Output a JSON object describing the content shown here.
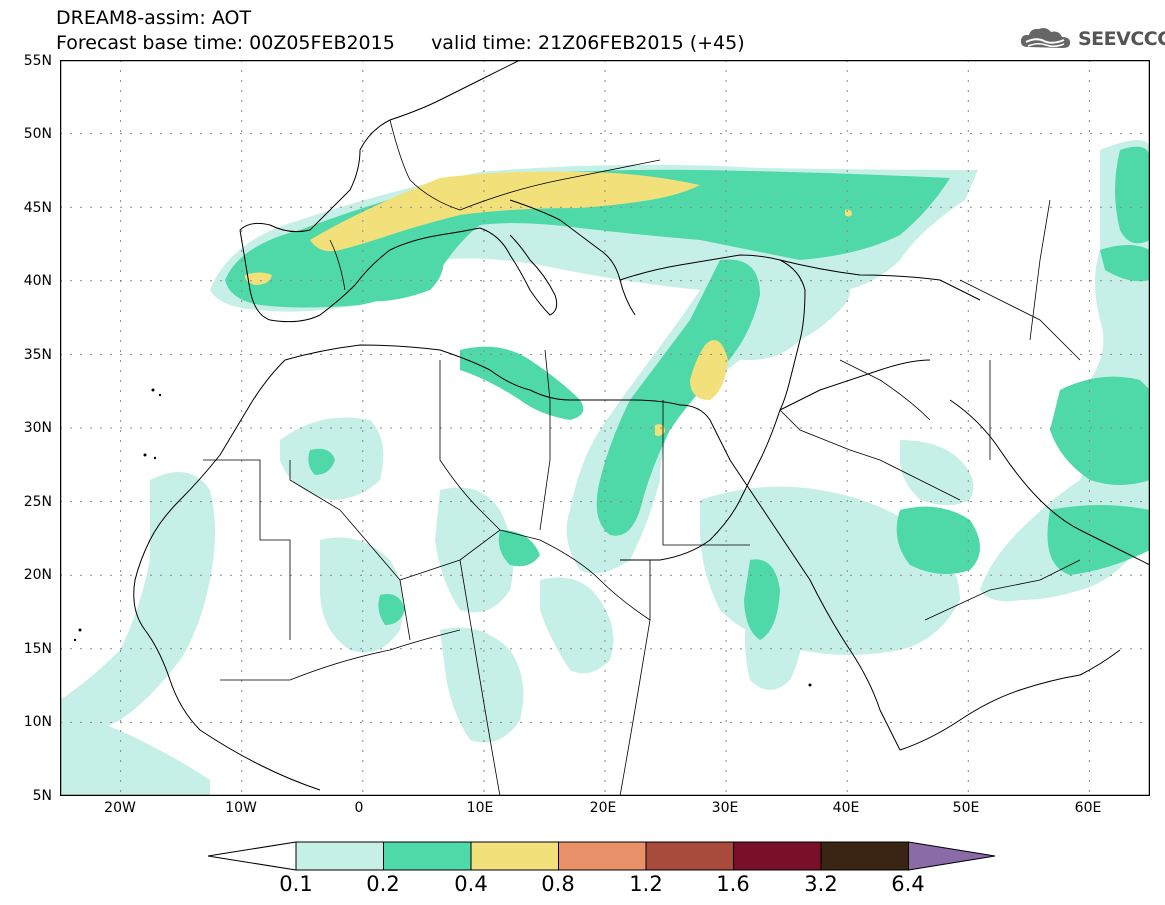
{
  "header": {
    "title_line1": "DREAM8-assim: AOT",
    "title_line2": "Forecast base time: 00Z05FEB2015      valid time: 21Z06FEB2015 (+45)",
    "logo_text": "SEEVCCC"
  },
  "map": {
    "lat_labels": [
      "55N",
      "50N",
      "45N",
      "40N",
      "35N",
      "30N",
      "25N",
      "20N",
      "15N",
      "10N",
      "5N"
    ],
    "lon_labels": [
      "20W",
      "10W",
      "0",
      "10E",
      "20E",
      "30E",
      "40E",
      "50E",
      "60E"
    ],
    "projection_extent": {
      "lon_min": -25,
      "lon_max": 65,
      "lat_min": 5,
      "lat_max": 55
    },
    "gridlines": "dotted"
  },
  "colorbar": {
    "labels": [
      "0.1",
      "0.2",
      "0.4",
      "0.8",
      "1.2",
      "1.6",
      "3.2",
      "6.4"
    ],
    "colors": [
      "#ffffff",
      "#c6efe8",
      "#4fd8a8",
      "#f2e07a",
      "#e89068",
      "#a84a3c",
      "#7a1028",
      "#3a2414",
      "#8b6aa8"
    ]
  }
}
